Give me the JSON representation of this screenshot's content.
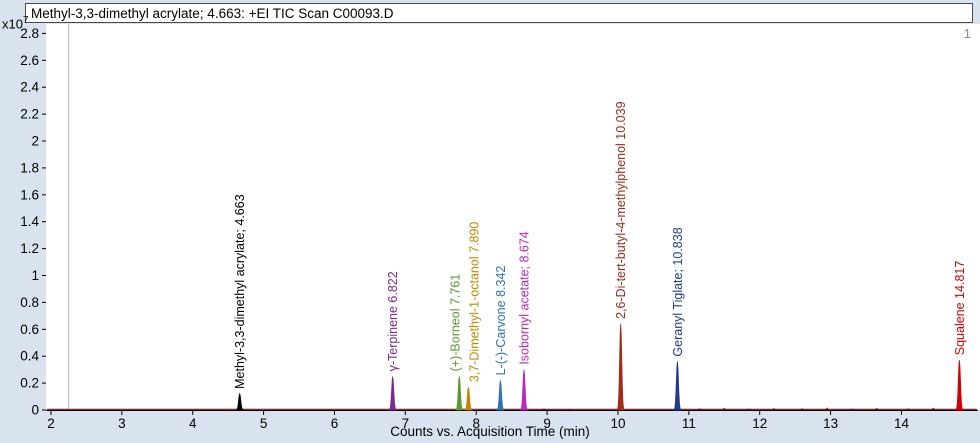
{
  "header": {
    "title": "Methyl-3,3-dimethyl acrylate; 4.663: +EI TIC Scan C00093.D"
  },
  "plot_index": "1",
  "chart_data": {
    "type": "line",
    "title": "Methyl-3,3-dimethyl acrylate; 4.663: +EI TIC Scan C00093.D",
    "xlabel": "Counts vs. Acquisition Time (min)",
    "ylabel": "Counts",
    "y_scale_base": "x10",
    "y_scale_exponent": "7",
    "xlim": [
      1.93,
      15.08
    ],
    "ylim": [
      0,
      2.87
    ],
    "x_ticks": [
      2,
      3,
      4,
      5,
      6,
      7,
      8,
      9,
      10,
      11,
      12,
      13,
      14
    ],
    "y_ticks": [
      0,
      0.2,
      0.4,
      0.6,
      0.8,
      1,
      1.2,
      1.4,
      1.6,
      1.8,
      2,
      2.2,
      2.4,
      2.6,
      2.8
    ],
    "grid": false,
    "cursor_x": 2.25,
    "trace_color": "#701010",
    "axis_color": "#000000",
    "peaks": [
      {
        "label": "Methyl-3,3-dimethyl acrylate; 4.663",
        "rt": 4.663,
        "height": 0.12,
        "color": "#000000"
      },
      {
        "label": "γ-Terpinene 6.822",
        "rt": 6.822,
        "height": 0.25,
        "color": "#7a2b8f"
      },
      {
        "label": "(+)-Borneol 7.761",
        "rt": 7.761,
        "height": 0.25,
        "color": "#5d9732",
        "label_dx": 0
      },
      {
        "label": "3,7-Dimethyl-1-octanol 7.890",
        "rt": 7.89,
        "height": 0.17,
        "color": "#c08a00",
        "label_dx": 10
      },
      {
        "label": "L-(-)-Carvone 8.342",
        "rt": 8.342,
        "height": 0.22,
        "color": "#2e74b5"
      },
      {
        "label": "Isobornyl acetate; 8.674",
        "rt": 8.674,
        "height": 0.3,
        "color": "#b82ab8"
      },
      {
        "label": "2,6-Di-tert-butyl-4-methylphenol 10.039",
        "rt": 10.039,
        "height": 0.64,
        "color": "#a02c1a"
      },
      {
        "label": "Geranyl Tiglate; 10.838",
        "rt": 10.838,
        "height": 0.36,
        "color": "#1f3a8f"
      },
      {
        "label": "Squalene 14.817",
        "rt": 14.817,
        "height": 0.37,
        "color": "#d40000"
      }
    ],
    "baseline_noise": [
      {
        "rt": 8.95,
        "height": 0.008
      },
      {
        "rt": 9.3,
        "height": 0.006
      },
      {
        "rt": 11.15,
        "height": 0.01
      },
      {
        "rt": 11.5,
        "height": 0.014
      },
      {
        "rt": 11.85,
        "height": 0.008
      },
      {
        "rt": 12.2,
        "height": 0.012
      },
      {
        "rt": 12.6,
        "height": 0.01
      },
      {
        "rt": 12.95,
        "height": 0.016
      },
      {
        "rt": 13.3,
        "height": 0.009
      },
      {
        "rt": 13.65,
        "height": 0.013
      },
      {
        "rt": 14.1,
        "height": 0.01
      },
      {
        "rt": 14.45,
        "height": 0.015
      }
    ]
  }
}
